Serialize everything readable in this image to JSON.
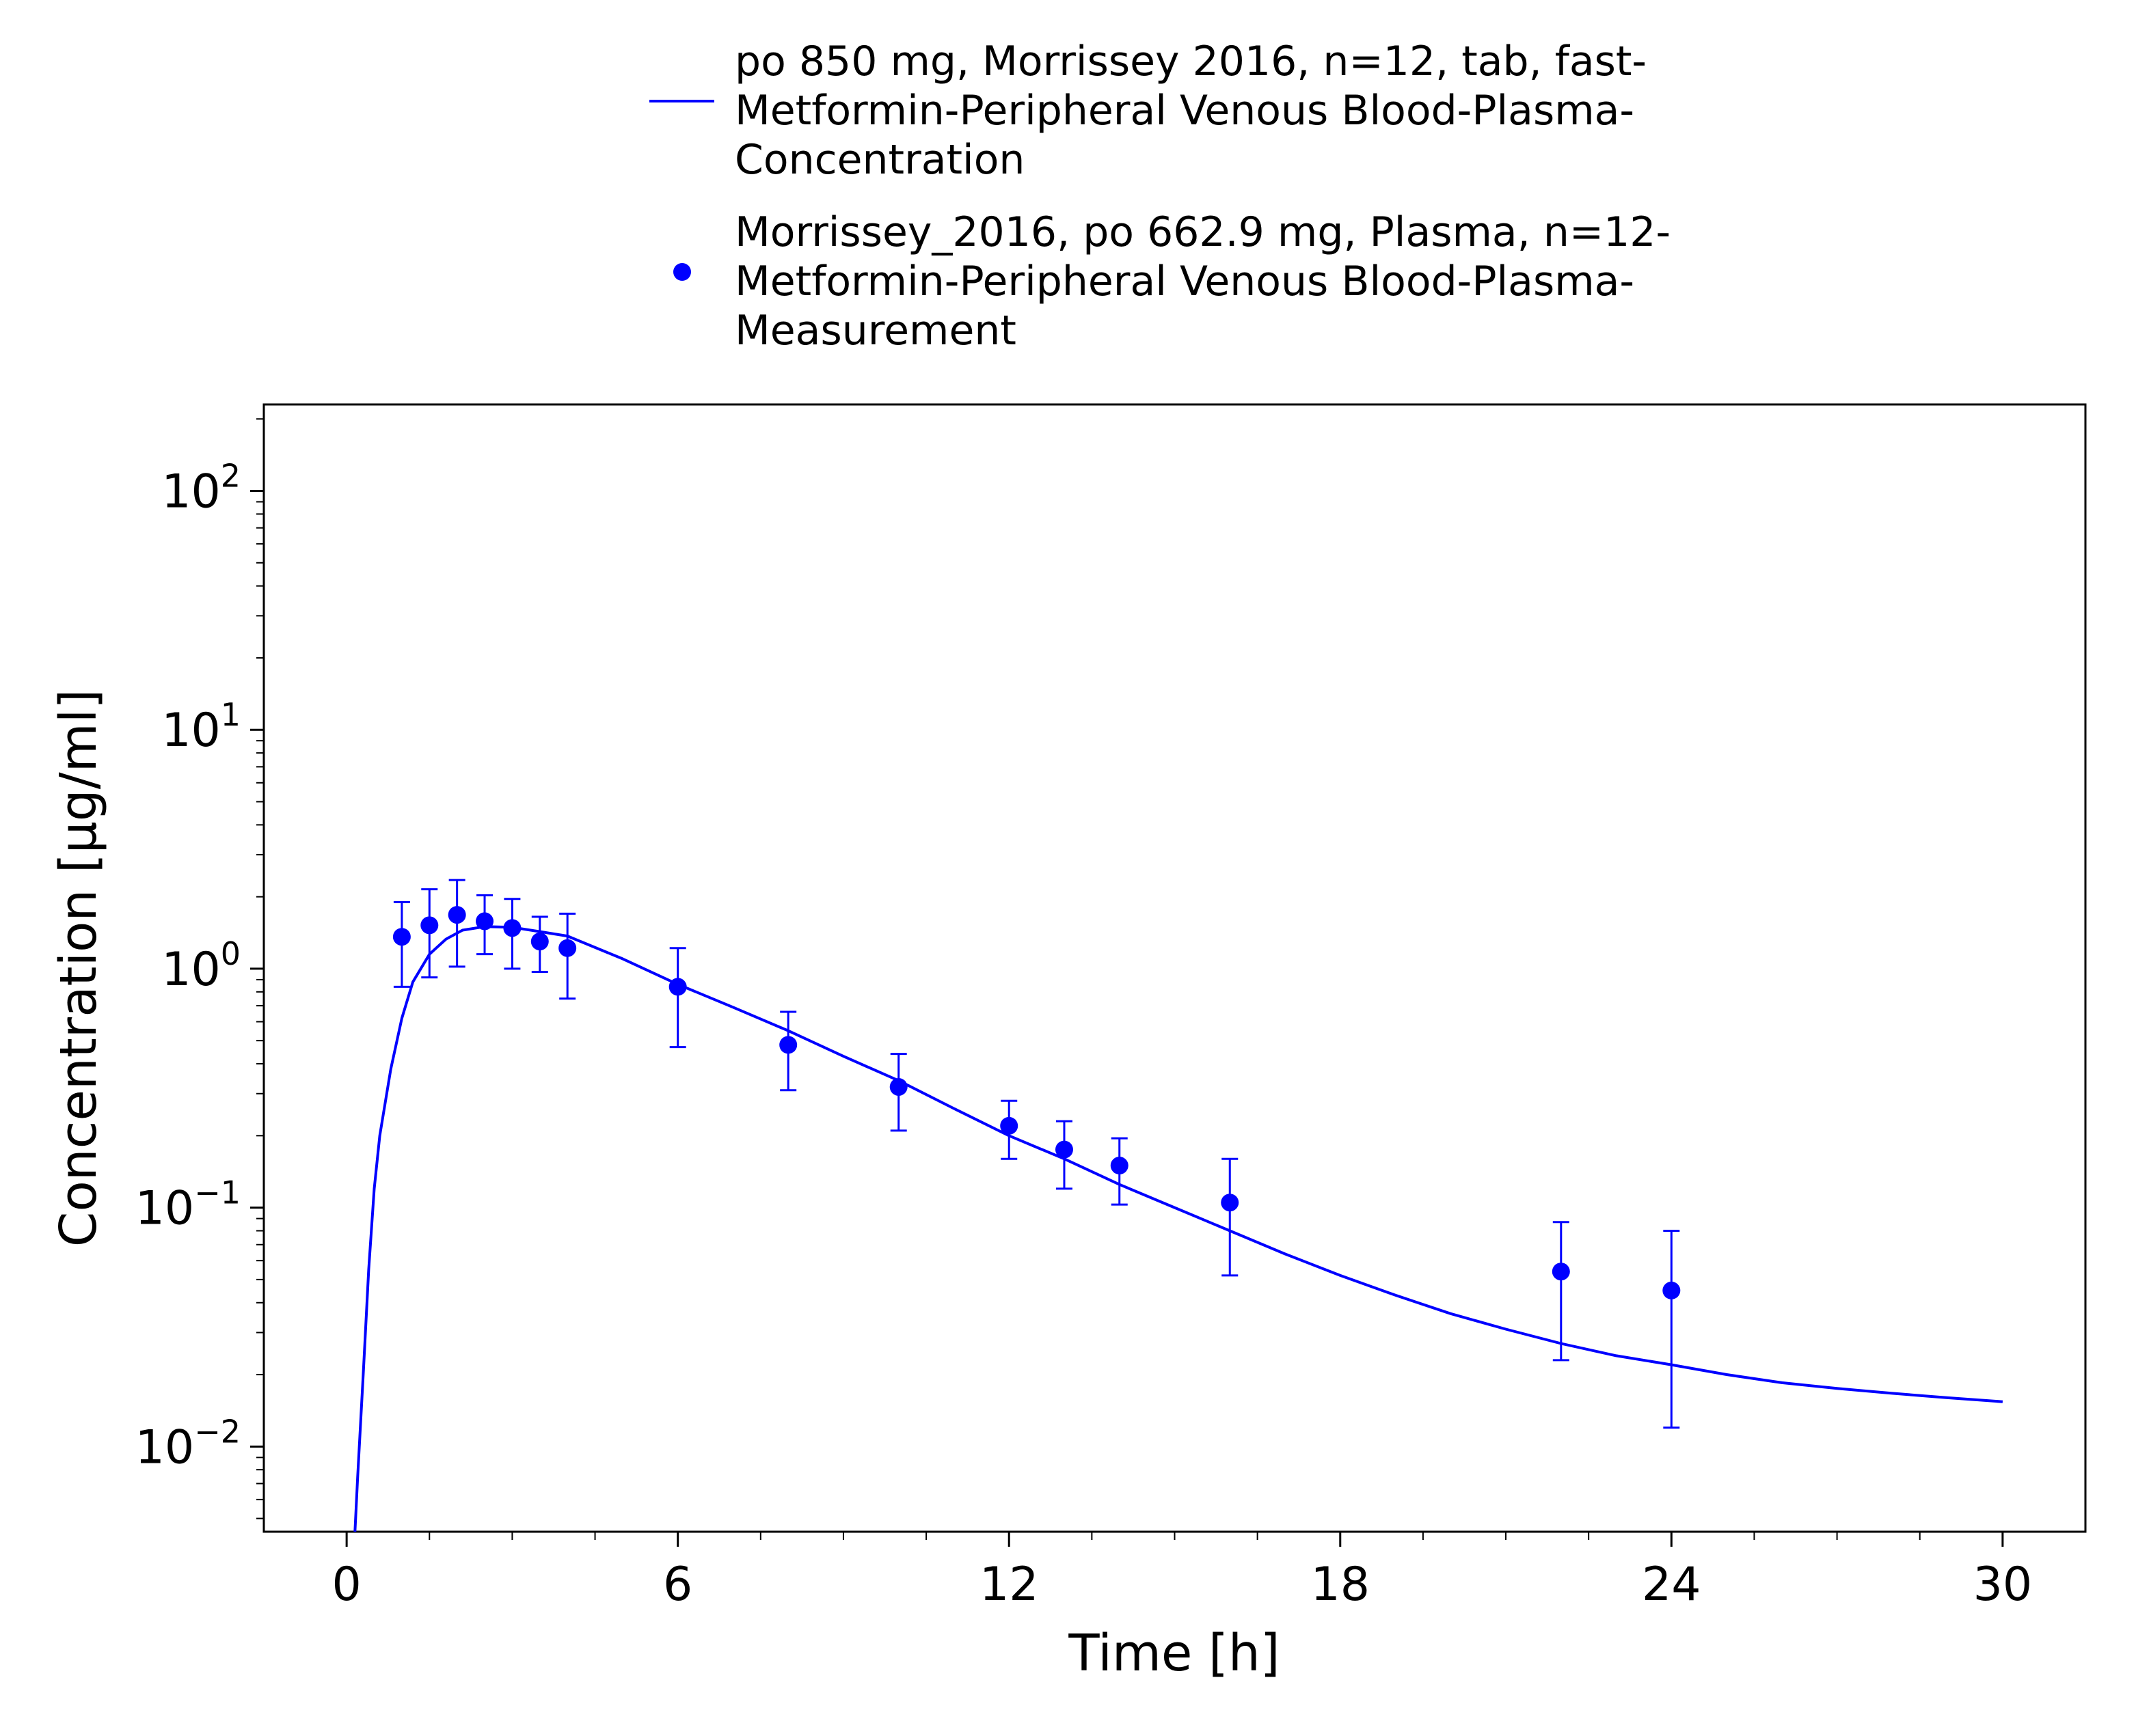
{
  "chart_data": {
    "type": "scatter",
    "xlabel": "Time [h]",
    "ylabel": "Concentration [µg/ml]",
    "xlim": [
      -1.5,
      31.5
    ],
    "ylim": [
      0.0044,
      230
    ],
    "yscale": "log",
    "x_ticks": [
      0,
      6,
      12,
      18,
      24,
      30
    ],
    "x_tick_labels": [
      "0",
      "6",
      "12",
      "18",
      "24",
      "30"
    ],
    "y_ticks": [
      0.01,
      0.1,
      1,
      10,
      100
    ],
    "y_tick_labels": [
      {
        "base": "10",
        "exp": "−2"
      },
      {
        "base": "10",
        "exp": "−1"
      },
      {
        "base": "10",
        "exp": "0"
      },
      {
        "base": "10",
        "exp": "1"
      },
      {
        "base": "10",
        "exp": "2"
      }
    ],
    "grid": false,
    "legend_position": "top-center",
    "color": "#0000ff",
    "series": [
      {
        "name_lines": [
          "po 850 mg, Morrissey 2016, n=12, tab, fast-",
          "Metformin-Peripheral Venous Blood-Plasma-",
          "Concentration"
        ],
        "kind": "line",
        "x": [
          0.15,
          0.2,
          0.3,
          0.4,
          0.5,
          0.6,
          0.8,
          1.0,
          1.2,
          1.5,
          1.8,
          2.1,
          2.5,
          3.0,
          3.5,
          4.0,
          5.0,
          6.0,
          7.0,
          8.0,
          9.0,
          10.0,
          11.0,
          12.0,
          13.0,
          14.0,
          15.0,
          16.0,
          17.0,
          18.0,
          19.0,
          20.0,
          21.0,
          22.0,
          23.0,
          24.0,
          25.0,
          26.0,
          27.0,
          28.0,
          29.0,
          30.0
        ],
        "y": [
          0.0044,
          0.0075,
          0.02,
          0.055,
          0.12,
          0.2,
          0.38,
          0.62,
          0.88,
          1.15,
          1.33,
          1.45,
          1.5,
          1.49,
          1.43,
          1.37,
          1.1,
          0.86,
          0.69,
          0.55,
          0.43,
          0.34,
          0.26,
          0.2,
          0.16,
          0.125,
          0.1,
          0.08,
          0.064,
          0.052,
          0.043,
          0.036,
          0.031,
          0.027,
          0.024,
          0.022,
          0.02,
          0.0185,
          0.0175,
          0.0167,
          0.016,
          0.0154
        ]
      },
      {
        "name_lines": [
          "Morrissey_2016, po 662.9 mg, Plasma, n=12-",
          "Metformin-Peripheral Venous Blood-Plasma-",
          "Measurement"
        ],
        "kind": "scatter",
        "x": [
          1.0,
          1.5,
          2.0,
          2.5,
          3.0,
          3.5,
          4.0,
          6.0,
          8.0,
          10.0,
          12.0,
          13.0,
          14.0,
          16.0,
          22.0,
          24.0
        ],
        "y": [
          1.36,
          1.52,
          1.68,
          1.58,
          1.48,
          1.3,
          1.22,
          0.84,
          0.48,
          0.32,
          0.22,
          0.175,
          0.15,
          0.105,
          0.054,
          0.045
        ],
        "yerr_low": [
          0.84,
          0.92,
          1.02,
          1.15,
          1.0,
          0.97,
          0.75,
          0.47,
          0.31,
          0.21,
          0.16,
          0.12,
          0.103,
          0.052,
          0.023,
          0.012
        ],
        "yerr_high": [
          1.9,
          2.15,
          2.35,
          2.03,
          1.96,
          1.65,
          1.7,
          1.22,
          0.66,
          0.44,
          0.28,
          0.23,
          0.195,
          0.16,
          0.087,
          0.08
        ]
      }
    ]
  }
}
